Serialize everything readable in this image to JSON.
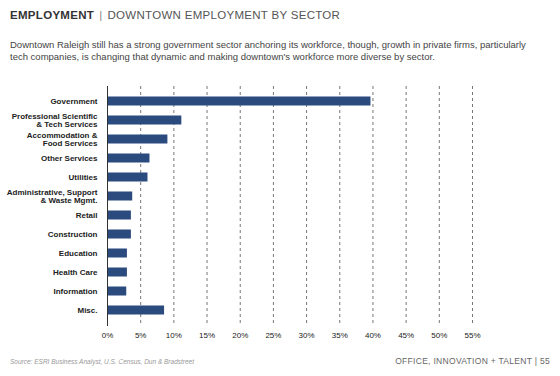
{
  "chart_data": {
    "type": "bar",
    "orientation": "horizontal",
    "title": "EMPLOYMENT",
    "subtitle": "DOWNTOWN EMPLOYMENT BY SECTOR",
    "description": "Downtown Raleigh still has a strong government sector anchoring its workforce, though, growth in private firms, particularly tech companies, is changing that dynamic and making downtown's workforce more diverse by sector.",
    "source": "Source: ESRI Business Analyst, U.S. Census, Dun & Bradstreet",
    "footer": "OFFICE, INNOVATION + TALENT | 55",
    "categories": [
      "Government",
      "Professional Scientific\n& Tech Services",
      "Accommodation &\nFood Services",
      "Other Services",
      "Utilities",
      "Administrative, Support\n& Waste Mgmt.",
      "Retail",
      "Construction",
      "Education",
      "Health Care",
      "Information",
      "Misc."
    ],
    "values": [
      39.7,
      11.2,
      9.1,
      6.4,
      6.1,
      3.8,
      3.6,
      3.6,
      3.0,
      3.0,
      2.9,
      8.6
    ],
    "color": "#2b4a7e",
    "xlim": [
      0,
      55
    ],
    "xticks": [
      {
        "value": 0,
        "label": "0%"
      },
      {
        "value": 5,
        "label": "5%"
      },
      {
        "value": 10,
        "label": "10%"
      },
      {
        "value": 15,
        "label": "15%"
      },
      {
        "value": 20,
        "label": "20%"
      },
      {
        "value": 25,
        "label": "25%"
      },
      {
        "value": 30,
        "label": "30%"
      },
      {
        "value": 35,
        "label": "35%"
      },
      {
        "value": 40,
        "label": "40%"
      },
      {
        "value": 45,
        "label": "45%"
      },
      {
        "value": 50,
        "label": "50%"
      },
      {
        "value": 55,
        "label": "55%"
      }
    ],
    "grid": true
  }
}
